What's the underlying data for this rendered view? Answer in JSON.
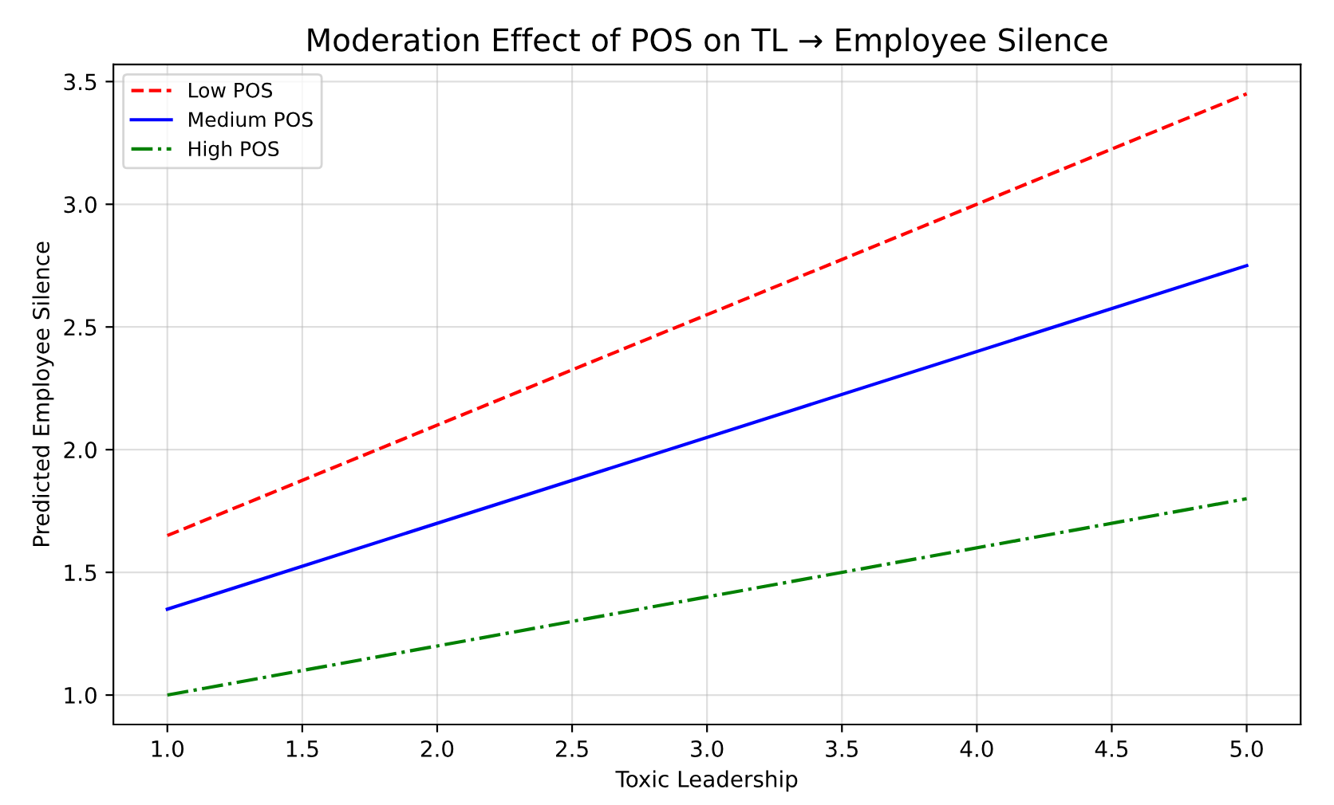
{
  "chart_data": {
    "type": "line",
    "title": "Moderation Effect of POS on TL → Employee Silence",
    "xlabel": "Toxic Leadership",
    "ylabel": "Predicted Employee Silence",
    "x": [
      1.0,
      5.0
    ],
    "series": [
      {
        "name": "Low POS",
        "color": "#ff0000",
        "values": [
          1.65,
          3.45
        ],
        "line_style": "dashed"
      },
      {
        "name": "Medium POS",
        "color": "#0000ff",
        "values": [
          1.35,
          2.75
        ],
        "line_style": "solid"
      },
      {
        "name": "High POS",
        "color": "#008000",
        "values": [
          1.0,
          1.8
        ],
        "line_style": "dashdot"
      }
    ],
    "xlim": [
      0.8,
      5.2
    ],
    "xticks": [
      {
        "value": 1,
        "label": "1.0"
      },
      1.5,
      {
        "value": 2,
        "label": "2.0"
      },
      2.5,
      {
        "value": 3,
        "label": "3.0"
      },
      3.5,
      {
        "value": 4,
        "label": "4.0"
      },
      4.5,
      {
        "value": 5,
        "label": "5.0"
      }
    ],
    "ylim": [
      0.88,
      3.57
    ],
    "yticks": [
      {
        "value": 1,
        "label": "1.0"
      },
      1.5,
      {
        "value": 2,
        "label": "2.0"
      },
      2.5,
      {
        "value": 3,
        "label": "3.0"
      },
      3.5
    ],
    "grid": true,
    "legend": "top left",
    "marker": "none"
  }
}
